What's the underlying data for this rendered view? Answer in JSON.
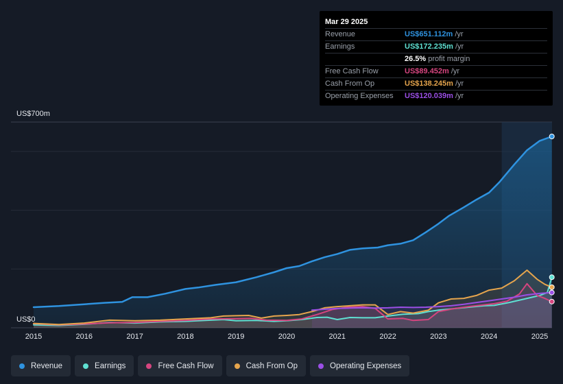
{
  "tooltip": {
    "date": "Mar 29 2025",
    "rows": [
      {
        "label": "Revenue",
        "value": "US$651.112m",
        "unit": "/yr",
        "color": "#2f93e0"
      },
      {
        "label": "Earnings",
        "value": "US$172.235m",
        "unit": "/yr",
        "color": "#5fe0d2"
      },
      {
        "label": "",
        "value": "26.5%",
        "unit": "profit margin",
        "color": "#ffffff"
      },
      {
        "label": "Free Cash Flow",
        "value": "US$89.452m",
        "unit": "/yr",
        "color": "#d6457f"
      },
      {
        "label": "Cash From Op",
        "value": "US$138.245m",
        "unit": "/yr",
        "color": "#e6a54d"
      },
      {
        "label": "Operating Expenses",
        "value": "US$120.039m",
        "unit": "/yr",
        "color": "#9b4fe6"
      }
    ]
  },
  "chart_data": {
    "type": "area",
    "y_max_label": "US$700m",
    "y_min_label": "US$0",
    "ylim": [
      0,
      700
    ],
    "xlim": [
      2014.85,
      2025.25
    ],
    "x_ticks": [
      "2015",
      "2016",
      "2017",
      "2018",
      "2019",
      "2020",
      "2021",
      "2022",
      "2023",
      "2024",
      "2025"
    ],
    "forecast_highlight_start": 2024.25,
    "series": [
      {
        "name": "Revenue",
        "color": "#2f93e0",
        "points": [
          [
            2015.0,
            70
          ],
          [
            2015.5,
            74
          ],
          [
            2016.0,
            80
          ],
          [
            2016.4,
            85
          ],
          [
            2016.75,
            88
          ],
          [
            2016.95,
            104
          ],
          [
            2017.25,
            104
          ],
          [
            2017.6,
            116
          ],
          [
            2018.0,
            132
          ],
          [
            2018.25,
            137
          ],
          [
            2018.6,
            146
          ],
          [
            2019.0,
            155
          ],
          [
            2019.4,
            172
          ],
          [
            2019.75,
            189
          ],
          [
            2020.0,
            203
          ],
          [
            2020.25,
            210
          ],
          [
            2020.5,
            226
          ],
          [
            2020.75,
            240
          ],
          [
            2021.0,
            251
          ],
          [
            2021.25,
            265
          ],
          [
            2021.5,
            270
          ],
          [
            2021.8,
            273
          ],
          [
            2022.0,
            281
          ],
          [
            2022.25,
            286
          ],
          [
            2022.5,
            298
          ],
          [
            2022.75,
            325
          ],
          [
            2023.0,
            354
          ],
          [
            2023.2,
            380
          ],
          [
            2023.5,
            410
          ],
          [
            2023.75,
            436
          ],
          [
            2024.0,
            460
          ],
          [
            2024.2,
            495
          ],
          [
            2024.5,
            556
          ],
          [
            2024.75,
            604
          ],
          [
            2025.0,
            636
          ],
          [
            2025.24,
            651
          ]
        ]
      },
      {
        "name": "Earnings",
        "color": "#5fe0d2",
        "points": [
          [
            2015.0,
            10
          ],
          [
            2015.5,
            8
          ],
          [
            2016.0,
            12
          ],
          [
            2016.5,
            18
          ],
          [
            2017.0,
            16
          ],
          [
            2017.5,
            20
          ],
          [
            2018.0,
            22
          ],
          [
            2018.5,
            26
          ],
          [
            2018.75,
            28
          ],
          [
            2019.0,
            24
          ],
          [
            2019.4,
            25
          ],
          [
            2019.75,
            22
          ],
          [
            2020.0,
            24
          ],
          [
            2020.3,
            28
          ],
          [
            2020.6,
            35
          ],
          [
            2020.8,
            36
          ],
          [
            2021.0,
            28
          ],
          [
            2021.25,
            35
          ],
          [
            2021.5,
            34
          ],
          [
            2021.75,
            34
          ],
          [
            2022.0,
            40
          ],
          [
            2022.3,
            46
          ],
          [
            2022.6,
            48
          ],
          [
            2022.8,
            55
          ],
          [
            2023.0,
            60
          ],
          [
            2023.3,
            65
          ],
          [
            2023.6,
            70
          ],
          [
            2023.9,
            75
          ],
          [
            2024.1,
            76
          ],
          [
            2024.4,
            86
          ],
          [
            2024.7,
            98
          ],
          [
            2025.0,
            110
          ],
          [
            2025.15,
            120
          ],
          [
            2025.24,
            172
          ]
        ]
      },
      {
        "name": "Free Cash Flow",
        "color": "#d6457f",
        "points": [
          [
            2015.0,
            14
          ],
          [
            2015.5,
            10
          ],
          [
            2016.0,
            13
          ],
          [
            2016.5,
            17
          ],
          [
            2017.0,
            18
          ],
          [
            2017.5,
            22
          ],
          [
            2018.0,
            25
          ],
          [
            2018.5,
            30
          ],
          [
            2019.0,
            31
          ],
          [
            2019.3,
            32
          ],
          [
            2019.6,
            26
          ],
          [
            2020.0,
            25
          ],
          [
            2020.3,
            30
          ],
          [
            2020.6,
            45
          ],
          [
            2020.9,
            62
          ],
          [
            2021.2,
            70
          ],
          [
            2021.5,
            72
          ],
          [
            2021.75,
            66
          ],
          [
            2022.0,
            30
          ],
          [
            2022.3,
            32
          ],
          [
            2022.5,
            25
          ],
          [
            2022.8,
            28
          ],
          [
            2023.0,
            55
          ],
          [
            2023.3,
            65
          ],
          [
            2023.6,
            72
          ],
          [
            2023.9,
            78
          ],
          [
            2024.1,
            82
          ],
          [
            2024.35,
            90
          ],
          [
            2024.6,
            115
          ],
          [
            2024.75,
            150
          ],
          [
            2024.95,
            110
          ],
          [
            2025.1,
            100
          ],
          [
            2025.24,
            89
          ]
        ]
      },
      {
        "name": "Cash From Op",
        "color": "#e6a54d",
        "points": [
          [
            2015.0,
            15
          ],
          [
            2015.5,
            11
          ],
          [
            2016.0,
            16
          ],
          [
            2016.5,
            26
          ],
          [
            2017.0,
            24
          ],
          [
            2017.5,
            26
          ],
          [
            2018.0,
            30
          ],
          [
            2018.5,
            34
          ],
          [
            2018.75,
            40
          ],
          [
            2019.0,
            41
          ],
          [
            2019.25,
            42
          ],
          [
            2019.5,
            33
          ],
          [
            2019.75,
            40
          ],
          [
            2020.0,
            42
          ],
          [
            2020.25,
            45
          ],
          [
            2020.5,
            55
          ],
          [
            2020.75,
            68
          ],
          [
            2021.0,
            72
          ],
          [
            2021.25,
            75
          ],
          [
            2021.5,
            78
          ],
          [
            2021.75,
            78
          ],
          [
            2022.0,
            45
          ],
          [
            2022.25,
            55
          ],
          [
            2022.5,
            50
          ],
          [
            2022.8,
            60
          ],
          [
            2023.0,
            85
          ],
          [
            2023.25,
            98
          ],
          [
            2023.5,
            100
          ],
          [
            2023.75,
            110
          ],
          [
            2024.0,
            128
          ],
          [
            2024.25,
            135
          ],
          [
            2024.5,
            160
          ],
          [
            2024.75,
            196
          ],
          [
            2024.95,
            165
          ],
          [
            2025.1,
            148
          ],
          [
            2025.24,
            138
          ]
        ]
      },
      {
        "name": "Operating Expenses",
        "color": "#9b4fe6",
        "points": [
          [
            2020.5,
            60
          ],
          [
            2020.75,
            63
          ],
          [
            2021.0,
            66
          ],
          [
            2021.25,
            67
          ],
          [
            2021.5,
            68
          ],
          [
            2021.75,
            67
          ],
          [
            2022.0,
            68
          ],
          [
            2022.25,
            70
          ],
          [
            2022.5,
            69
          ],
          [
            2022.75,
            70
          ],
          [
            2023.0,
            72
          ],
          [
            2023.25,
            75
          ],
          [
            2023.5,
            80
          ],
          [
            2023.75,
            86
          ],
          [
            2024.0,
            92
          ],
          [
            2024.25,
            98
          ],
          [
            2024.5,
            104
          ],
          [
            2024.75,
            112
          ],
          [
            2025.0,
            117
          ],
          [
            2025.24,
            120
          ]
        ]
      }
    ]
  },
  "legend": [
    {
      "label": "Revenue",
      "color": "#2f93e0"
    },
    {
      "label": "Earnings",
      "color": "#5fe0d2"
    },
    {
      "label": "Free Cash Flow",
      "color": "#d6457f"
    },
    {
      "label": "Cash From Op",
      "color": "#e6a54d"
    },
    {
      "label": "Operating Expenses",
      "color": "#9b4fe6"
    }
  ]
}
